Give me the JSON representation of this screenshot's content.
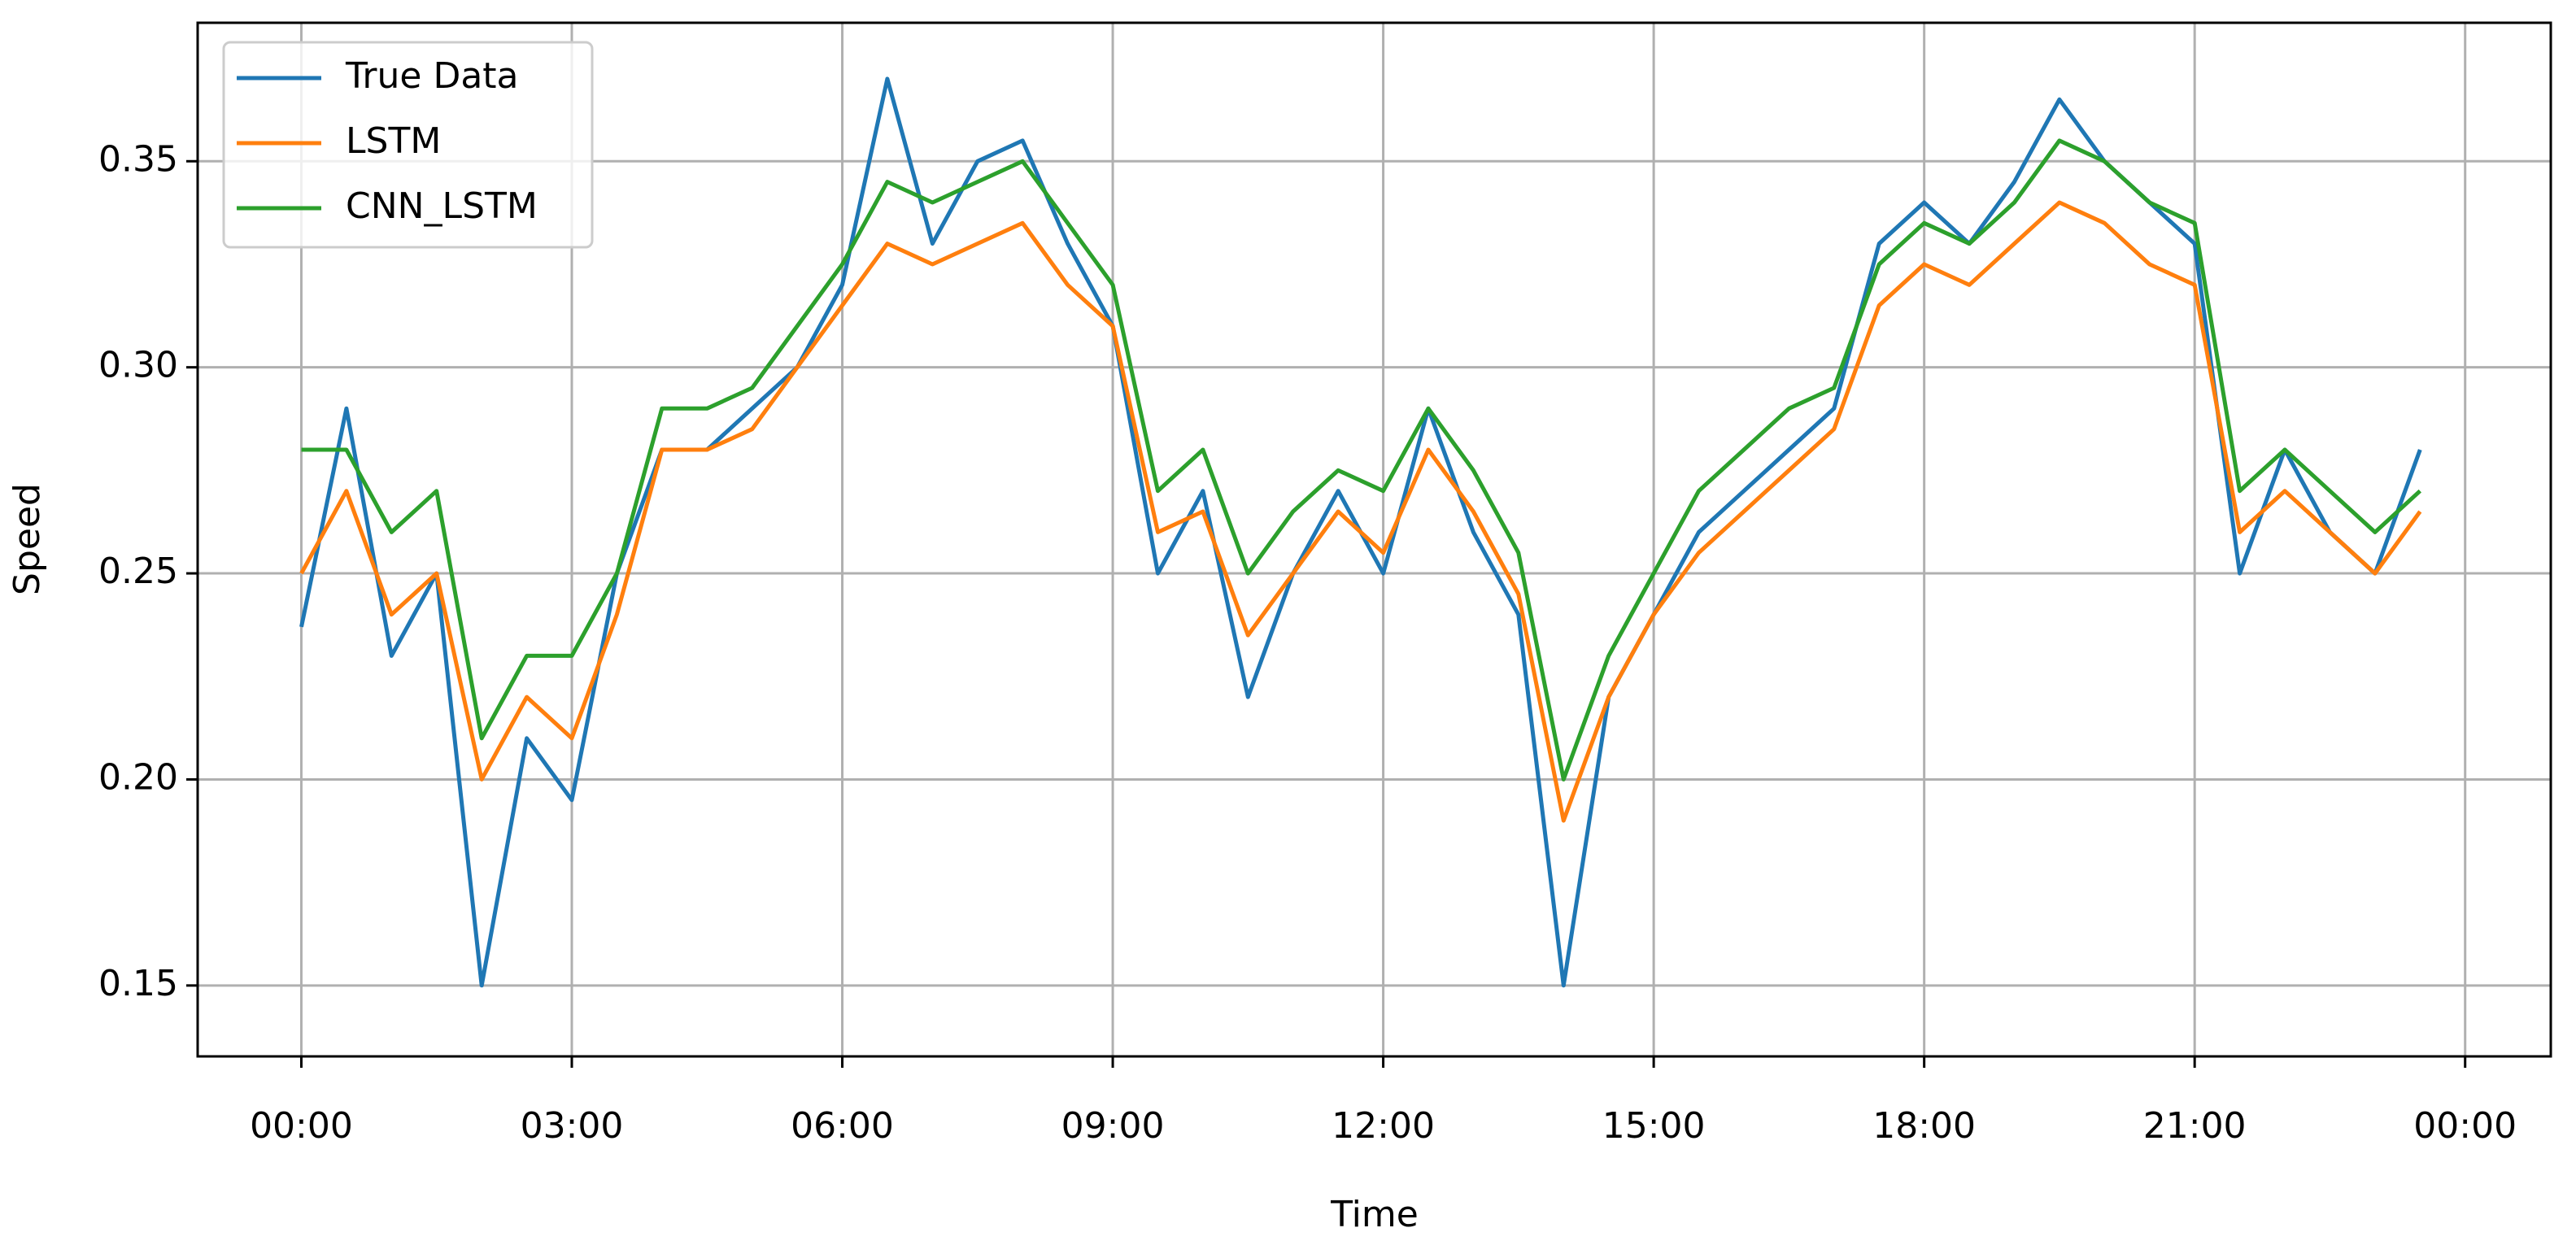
{
  "chart_data": {
    "type": "line",
    "xlabel": "Time",
    "ylabel": "Speed",
    "x": [
      0,
      0.5,
      1,
      1.5,
      2,
      2.5,
      3,
      3.5,
      4,
      4.5,
      5,
      5.5,
      6,
      6.5,
      7,
      7.5,
      8,
      8.5,
      9,
      9.5,
      10,
      10.5,
      11,
      11.5,
      12,
      12.5,
      13,
      13.5,
      14,
      14.5,
      15,
      15.5,
      16,
      16.5,
      17,
      17.5,
      18,
      18.5,
      19,
      19.5,
      20,
      20.5,
      21,
      21.5,
      22,
      22.5,
      23,
      23.5
    ],
    "series": [
      {
        "name": "True Data",
        "color": "#1f77b4",
        "values": [
          0.237,
          0.29,
          0.23,
          0.25,
          0.15,
          0.21,
          0.195,
          0.25,
          0.28,
          0.28,
          0.29,
          0.3,
          0.32,
          0.37,
          0.33,
          0.35,
          0.355,
          0.33,
          0.31,
          0.25,
          0.27,
          0.22,
          0.25,
          0.27,
          0.25,
          0.29,
          0.26,
          0.24,
          0.15,
          0.22,
          0.24,
          0.26,
          0.27,
          0.28,
          0.29,
          0.33,
          0.34,
          0.33,
          0.345,
          0.365,
          0.35,
          0.34,
          0.33,
          0.25,
          0.28,
          0.26,
          0.25,
          0.28
        ]
      },
      {
        "name": "LSTM",
        "color": "#ff7f0e",
        "values": [
          0.25,
          0.27,
          0.24,
          0.25,
          0.2,
          0.22,
          0.21,
          0.24,
          0.28,
          0.28,
          0.285,
          0.3,
          0.315,
          0.33,
          0.325,
          0.33,
          0.335,
          0.32,
          0.31,
          0.26,
          0.265,
          0.235,
          0.25,
          0.265,
          0.255,
          0.28,
          0.265,
          0.245,
          0.19,
          0.22,
          0.24,
          0.255,
          0.265,
          0.275,
          0.285,
          0.315,
          0.325,
          0.32,
          0.33,
          0.34,
          0.335,
          0.325,
          0.32,
          0.26,
          0.27,
          0.26,
          0.25,
          0.265
        ]
      },
      {
        "name": "CNN_LSTM",
        "color": "#2ca02c",
        "values": [
          0.28,
          0.28,
          0.26,
          0.27,
          0.21,
          0.23,
          0.23,
          0.25,
          0.29,
          0.29,
          0.295,
          0.31,
          0.325,
          0.345,
          0.34,
          0.345,
          0.35,
          0.335,
          0.32,
          0.27,
          0.28,
          0.25,
          0.265,
          0.275,
          0.27,
          0.29,
          0.275,
          0.255,
          0.2,
          0.23,
          0.25,
          0.27,
          0.28,
          0.29,
          0.295,
          0.325,
          0.335,
          0.33,
          0.34,
          0.355,
          0.35,
          0.34,
          0.335,
          0.27,
          0.28,
          0.27,
          0.26,
          0.27
        ]
      }
    ],
    "xlim": [
      -1.15,
      24.95
    ],
    "ylim": [
      0.1328,
      0.3836
    ],
    "xticks": [
      {
        "value": 0,
        "label": "00:00"
      },
      {
        "value": 3,
        "label": "03:00"
      },
      {
        "value": 6,
        "label": "06:00"
      },
      {
        "value": 9,
        "label": "09:00"
      },
      {
        "value": 12,
        "label": "12:00"
      },
      {
        "value": 15,
        "label": "15:00"
      },
      {
        "value": 18,
        "label": "18:00"
      },
      {
        "value": 21,
        "label": "21:00"
      },
      {
        "value": 24,
        "label": "00:00"
      }
    ],
    "yticks": [
      0.15,
      {
        "value": 0.2,
        "label": "0.20"
      },
      0.25,
      {
        "value": 0.3,
        "label": "0.30"
      },
      0.35
    ],
    "grid": true,
    "legend": "upper left"
  }
}
